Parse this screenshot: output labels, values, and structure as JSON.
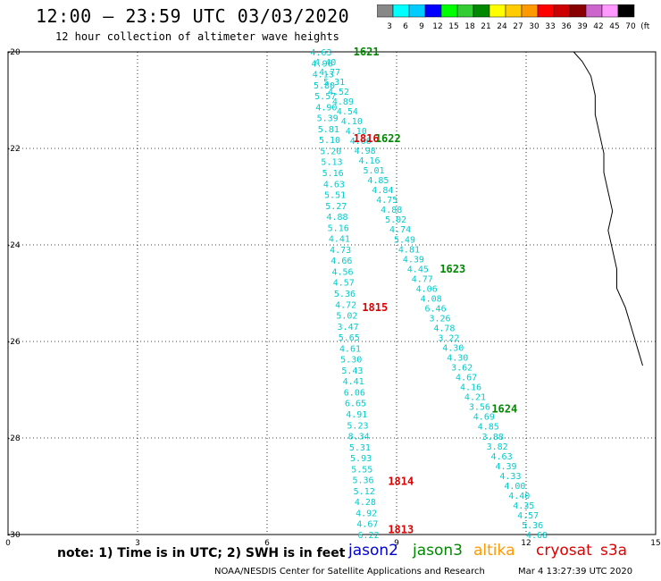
{
  "title": "12:00 – 23:59 UTC 03/03/2020",
  "subtitle": "12 hour collection of altimeter wave heights",
  "legend": {
    "labels": [
      "3",
      "6",
      "9",
      "12",
      "15",
      "18",
      "21",
      "24",
      "27",
      "30",
      "33",
      "36",
      "39",
      "42",
      "45",
      "70",
      "(ft)"
    ],
    "colors": [
      "#888888",
      "#00ffff",
      "#00ccff",
      "#0000ff",
      "#00ff00",
      "#33cc33",
      "#008800",
      "#ffff00",
      "#ffcc00",
      "#ff9900",
      "#ff0000",
      "#cc0000",
      "#880000",
      "#cc66cc",
      "#ff99ff",
      "#000000"
    ]
  },
  "note": "note:  1) Time is in UTC;  2) SWH is in feet",
  "satellites": [
    {
      "name": "jason2",
      "color": "#0000cc"
    },
    {
      "name": "jason3",
      "color": "#008800"
    },
    {
      "name": "altika",
      "color": "#ff9900"
    },
    {
      "name": "cryosat",
      "color": "#dd0000"
    },
    {
      "name": "s3a",
      "color": "#dd0000"
    }
  ],
  "footer_left": "NOAA/NESDIS Center for Satellite Applications and Research",
  "footer_right": "Mar  4 13:27:39 UTC 2020",
  "chart_data": {
    "type": "map",
    "x_ticks": [
      "0",
      "3",
      "6",
      "9",
      "12",
      "15"
    ],
    "y_ticks": [
      "-20",
      "-22",
      "-24",
      "-26",
      "-28",
      "-30"
    ],
    "xlim": [
      0,
      15
    ],
    "ylim": [
      -30,
      -20
    ],
    "grid": "dotted",
    "pass_labels": [
      {
        "text": "1621",
        "x": 8.0,
        "y": -20.0,
        "color": "#008800"
      },
      {
        "text": "1816",
        "x": 8.0,
        "y": -21.8,
        "color": "#dd0000"
      },
      {
        "text": "1622",
        "x": 8.5,
        "y": -21.8,
        "color": "#008800"
      },
      {
        "text": "1623",
        "x": 10.0,
        "y": -24.5,
        "color": "#008800"
      },
      {
        "text": "1815",
        "x": 8.2,
        "y": -25.3,
        "color": "#dd0000"
      },
      {
        "text": "1624",
        "x": 11.2,
        "y": -27.4,
        "color": "#008800"
      },
      {
        "text": "1814",
        "x": 8.8,
        "y": -28.9,
        "color": "#dd0000"
      },
      {
        "text": "1813",
        "x": 8.8,
        "y": -29.9,
        "color": "#dd0000"
      }
    ],
    "track_a": {
      "color": "#00cccc",
      "x_start": 7.0,
      "x_end": 8.1,
      "y_start": -20.0,
      "y_end": -30.0,
      "values": [
        "4.63",
        "4.96",
        "4.13",
        "5.80",
        "5.57",
        "4.90",
        "5.39",
        "5.81",
        "5.10",
        "5.20",
        "5.13",
        "5.16",
        "4.63",
        "5.51",
        "5.27",
        "4.88",
        "5.16",
        "4.41",
        "4.73",
        "4.66",
        "4.56",
        "4.57",
        "5.36",
        "4.72",
        "5.02",
        "3.47",
        "5.65",
        "4.61",
        "5.30",
        "5.43",
        "4.41",
        "6.06",
        "6.65",
        "4.91",
        "5.23",
        "8.34",
        "5.31",
        "5.93",
        "5.55",
        "5.36",
        "5.12",
        "4.28",
        "4.92",
        "4.67",
        "6.22"
      ]
    },
    "track_b": {
      "color": "#00cccc",
      "x_start": 7.1,
      "x_end": 12.0,
      "y_start": -20.2,
      "y_end": -30.0,
      "values": [
        "4.40",
        "4.77",
        "5.31",
        "4.52",
        "4.89",
        "4.54",
        "4.10",
        "4.10",
        "4.66",
        "4.98",
        "4.16",
        "5.01",
        "4.85",
        "4.84",
        "4.75",
        "4.88",
        "5.02",
        "4.74",
        "5.49",
        "4.81",
        "4.39",
        "4.45",
        "4.77",
        "4.06",
        "4.08",
        "6.46",
        "3.26",
        "4.78",
        "3.22",
        "4.30",
        "4.30",
        "3.62",
        "4.67",
        "4.16",
        "4.21",
        "3.56",
        "4.69",
        "4.85",
        "3.88",
        "3.82",
        "4.63",
        "4.39",
        "4.33",
        "4.00",
        "4.40",
        "4.35",
        "4.57",
        "5.36",
        "4.68"
      ]
    },
    "coastline_color": "#000000"
  }
}
